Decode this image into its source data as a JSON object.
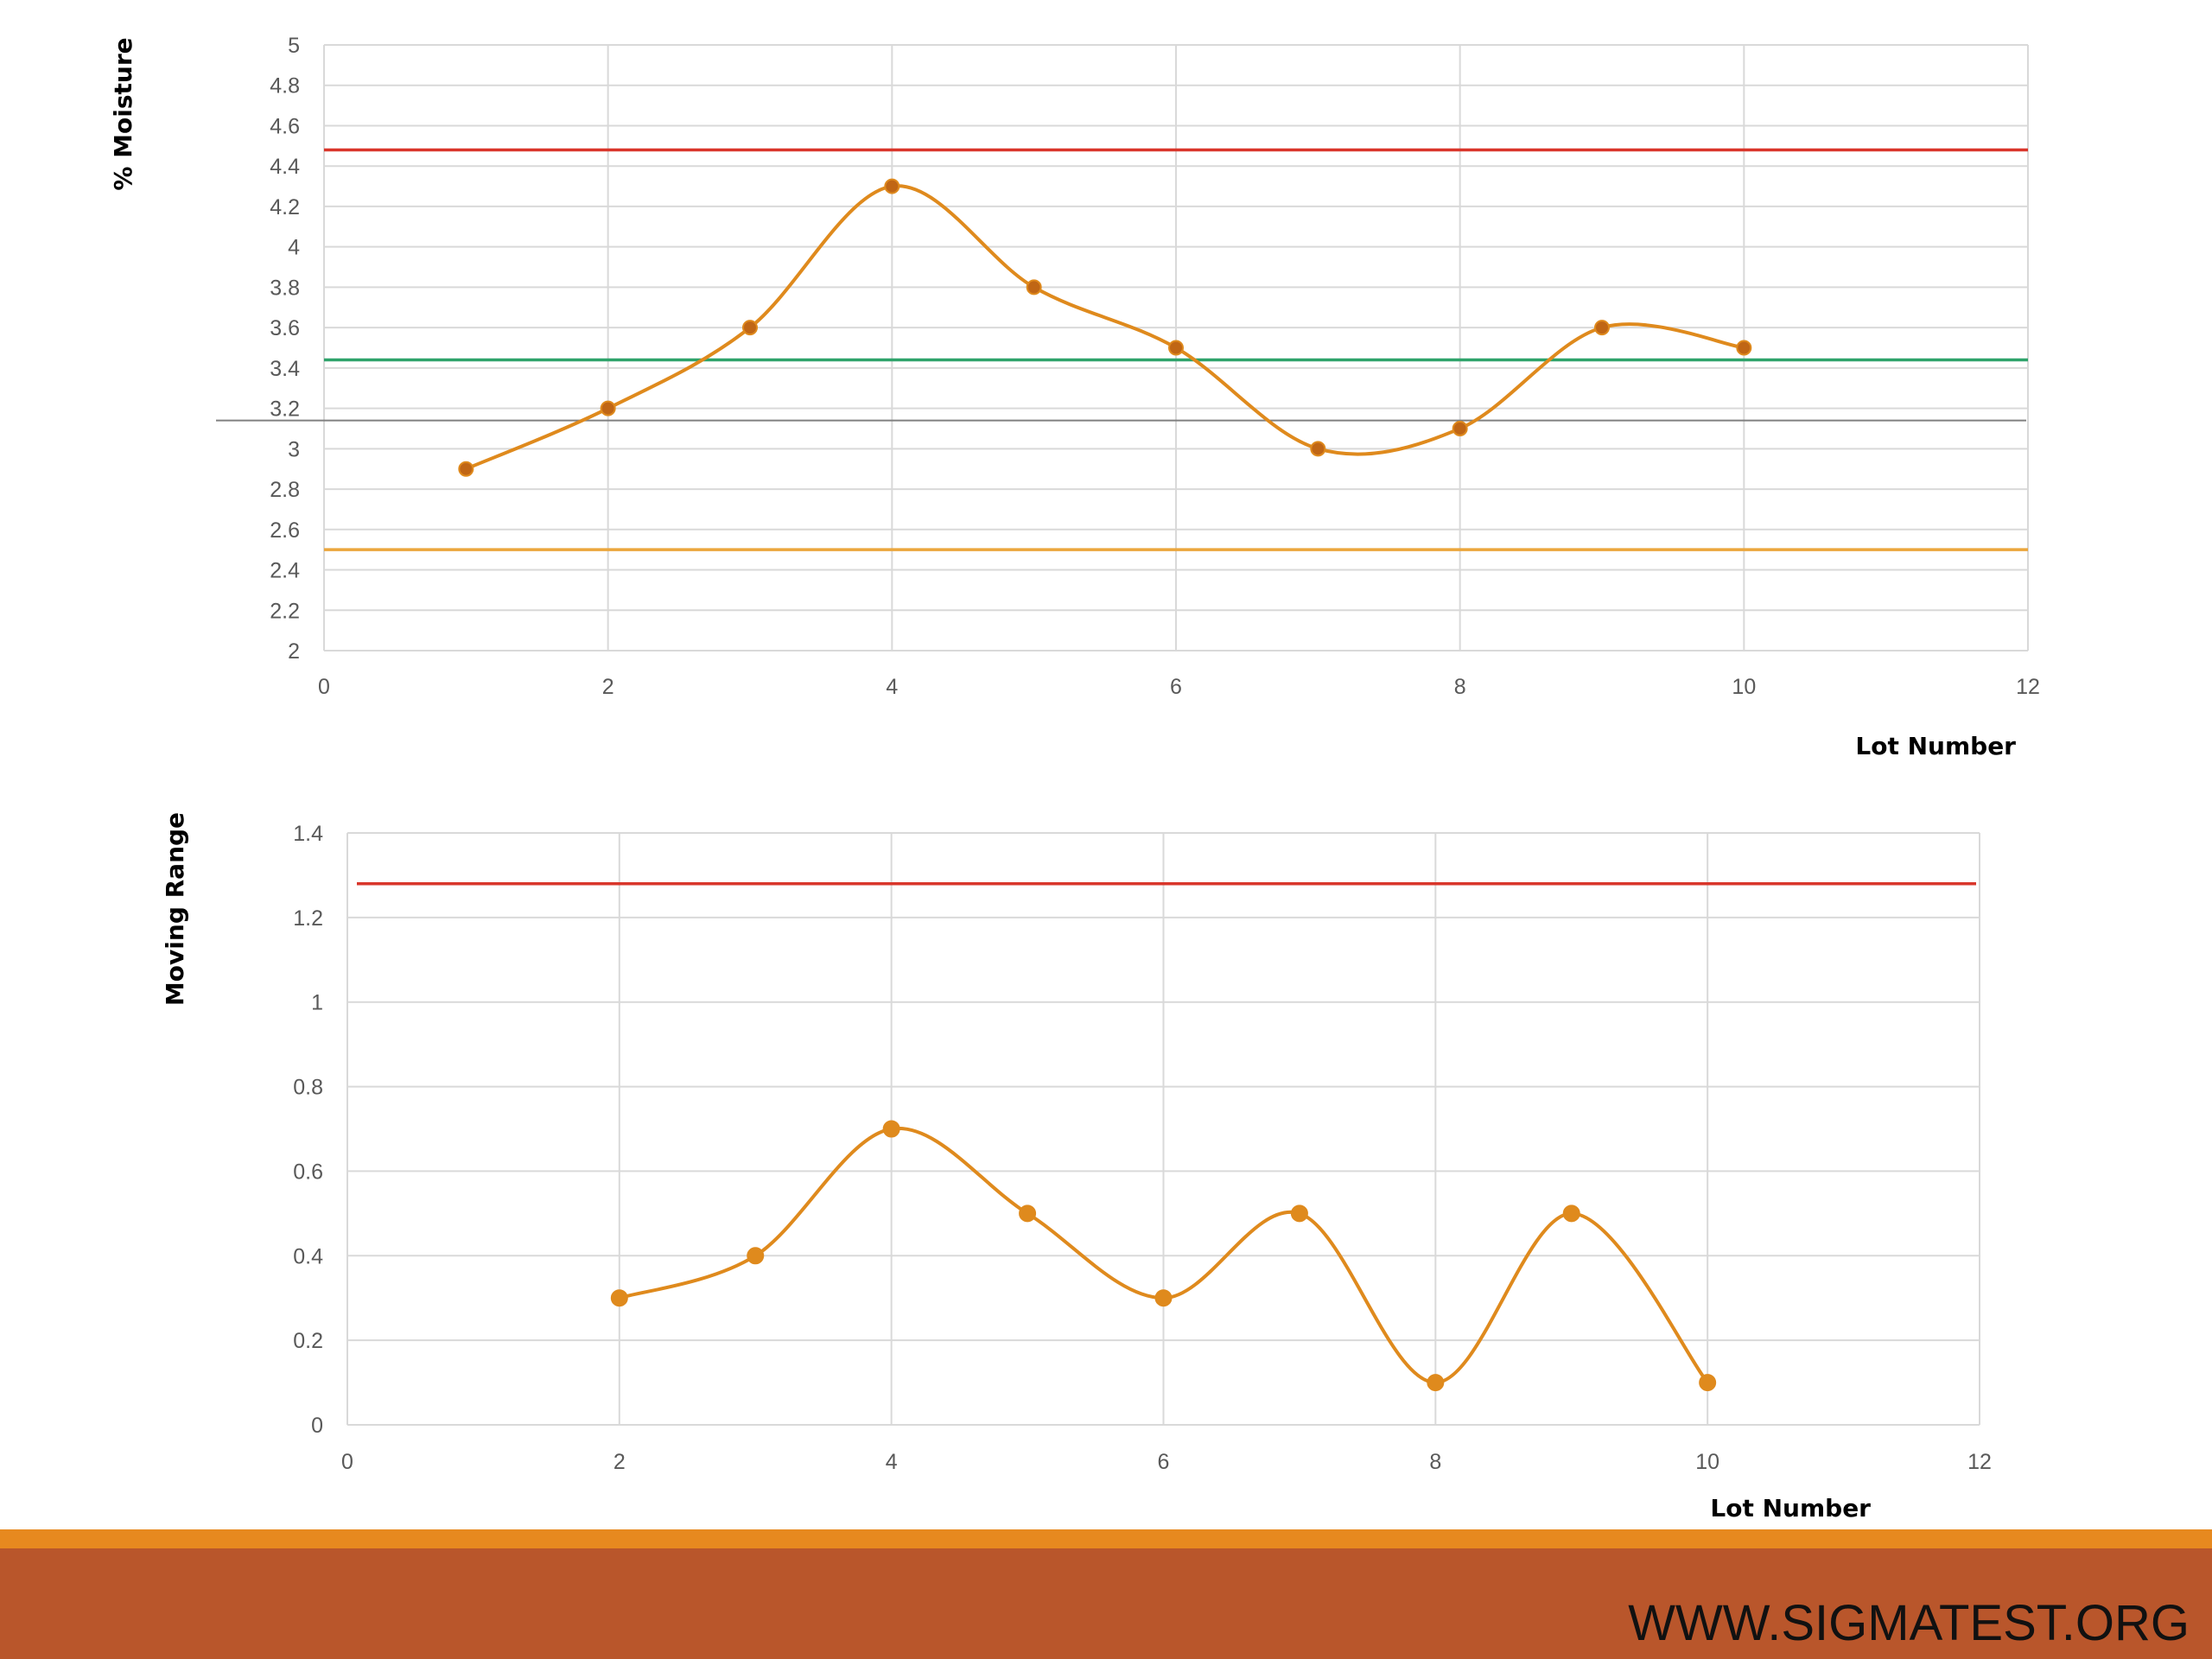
{
  "footer": {
    "url": "WWW.SIGMATEST.ORG"
  },
  "colors": {
    "series": "#df8a1d",
    "series_marker_top": "#c06615",
    "ucl": "#d9362b",
    "center": "#2fa36b",
    "lcl": "#eba63c",
    "grid": "#d9d9d9",
    "footer_bar": "#b9562b",
    "footer_stripe": "#e7891f"
  },
  "chart_data": [
    {
      "type": "line",
      "smooth": true,
      "xlabel": "Lot Number",
      "ylabel": "% Moisture",
      "xlim": [
        0,
        12
      ],
      "ylim": [
        2,
        5
      ],
      "x_ticks": [
        "0",
        "2",
        "4",
        "6",
        "8",
        "10",
        "12"
      ],
      "y_ticks": [
        "2",
        "2.2",
        "2.4",
        "2.6",
        "2.8",
        "3",
        "3.2",
        "3.4",
        "3.6",
        "3.8",
        "4",
        "4.2",
        "4.4",
        "4.6",
        "4.8",
        "5"
      ],
      "grid": true,
      "series": [
        {
          "x": [
            1,
            2,
            3,
            4,
            5,
            6,
            7,
            8,
            9,
            10
          ],
          "y": [
            2.9,
            3.2,
            3.6,
            4.3,
            3.8,
            3.5,
            3.0,
            3.1,
            3.6,
            3.5
          ]
        }
      ],
      "reference_lines": [
        {
          "y": 4.48,
          "color": "#d9362b"
        },
        {
          "y": 3.44,
          "color": "#2fa36b"
        },
        {
          "y": 2.5,
          "color": "#eba63c"
        },
        {
          "y": 3.14,
          "color": "#808080"
        }
      ]
    },
    {
      "type": "line",
      "smooth": true,
      "xlabel": "Lot Number",
      "ylabel": "Moving Range",
      "xlim": [
        0,
        12
      ],
      "ylim": [
        0,
        1.4
      ],
      "x_ticks": [
        "0",
        "2",
        "4",
        "6",
        "8",
        "10",
        "12"
      ],
      "y_ticks": [
        "0",
        "0.2",
        "0.4",
        "0.6",
        "0.8",
        "1",
        "1.2",
        "1.4"
      ],
      "grid": true,
      "series": [
        {
          "x": [
            2,
            3,
            4,
            5,
            6,
            7,
            8,
            9,
            10
          ],
          "y": [
            0.3,
            0.4,
            0.7,
            0.5,
            0.3,
            0.5,
            0.1,
            0.5,
            0.1
          ]
        }
      ],
      "reference_lines": [
        {
          "y": 1.28,
          "color": "#d9362b"
        }
      ]
    }
  ]
}
